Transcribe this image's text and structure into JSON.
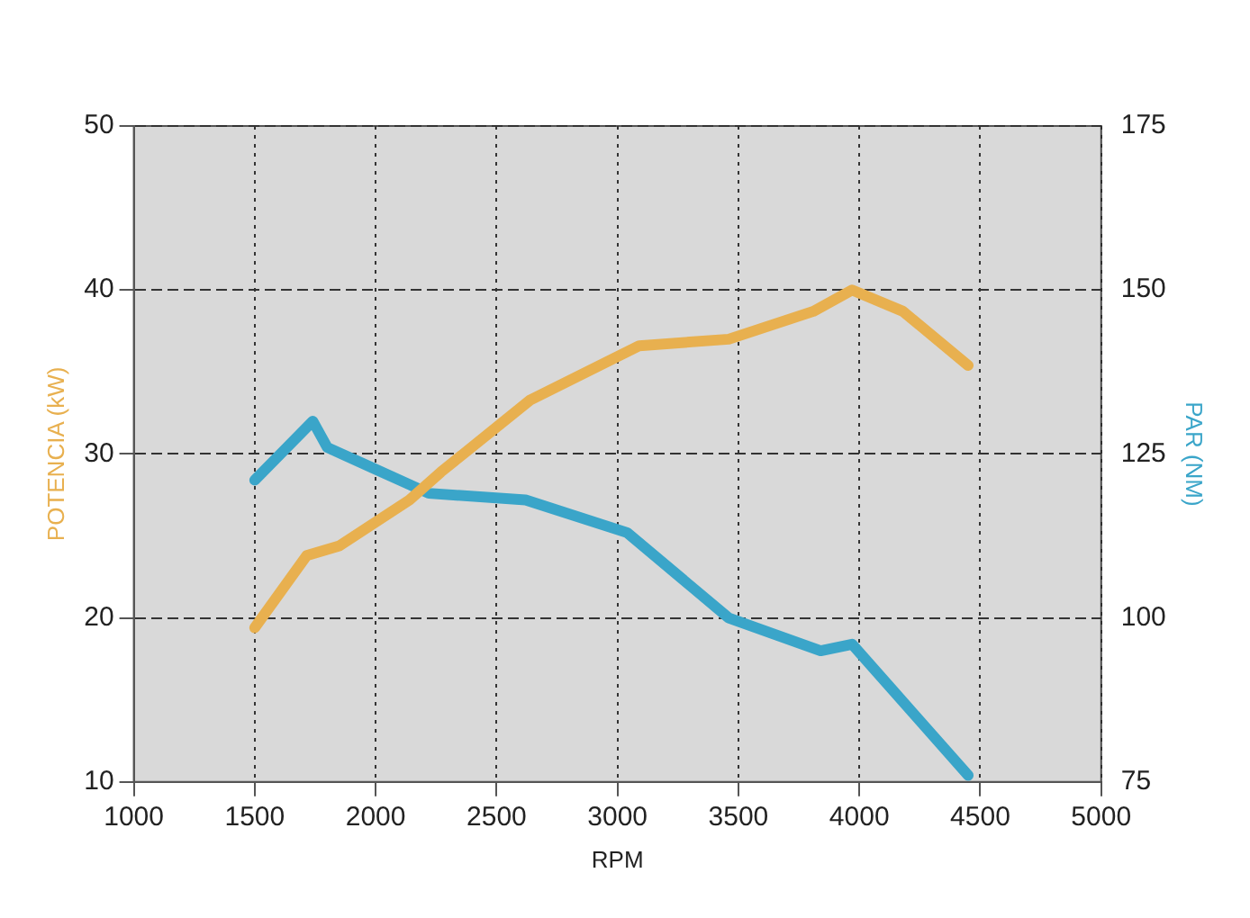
{
  "chart_data": {
    "type": "line",
    "xlabel": "RPM",
    "ylabel": "POTENCIA (kW)",
    "y2label": "PAR (NM)",
    "xlim": [
      1000,
      5000
    ],
    "xticks": [
      1000,
      1500,
      2000,
      2500,
      3000,
      3500,
      4000,
      4500,
      5000
    ],
    "ylim": [
      10,
      50
    ],
    "yticks": [
      10,
      20,
      30,
      40,
      50
    ],
    "y2lim": [
      75,
      175
    ],
    "y2ticks": [
      75,
      100,
      125,
      150,
      175
    ],
    "grid": true,
    "legend": false,
    "marker": "none",
    "line_style": "solid",
    "series": [
      {
        "color": "#e8b04f",
        "x": [
          1500,
          1715,
          1850,
          2140,
          2270,
          2640,
          3090,
          3460,
          3810,
          3970,
          4180,
          4450
        ],
        "values": [
          19.4,
          23.8,
          24.4,
          27.2,
          28.9,
          33.3,
          36.6,
          37.0,
          38.7,
          40.0,
          38.7,
          35.4
        ]
      },
      {
        "color": "#3aa5c9",
        "axis": "y2",
        "x": [
          1500,
          1740,
          1800,
          1980,
          2220,
          2620,
          3040,
          3460,
          3840,
          3970,
          4450
        ],
        "values": [
          121,
          130,
          126,
          123,
          119,
          118,
          113,
          100,
          95,
          96,
          76
        ]
      }
    ]
  }
}
